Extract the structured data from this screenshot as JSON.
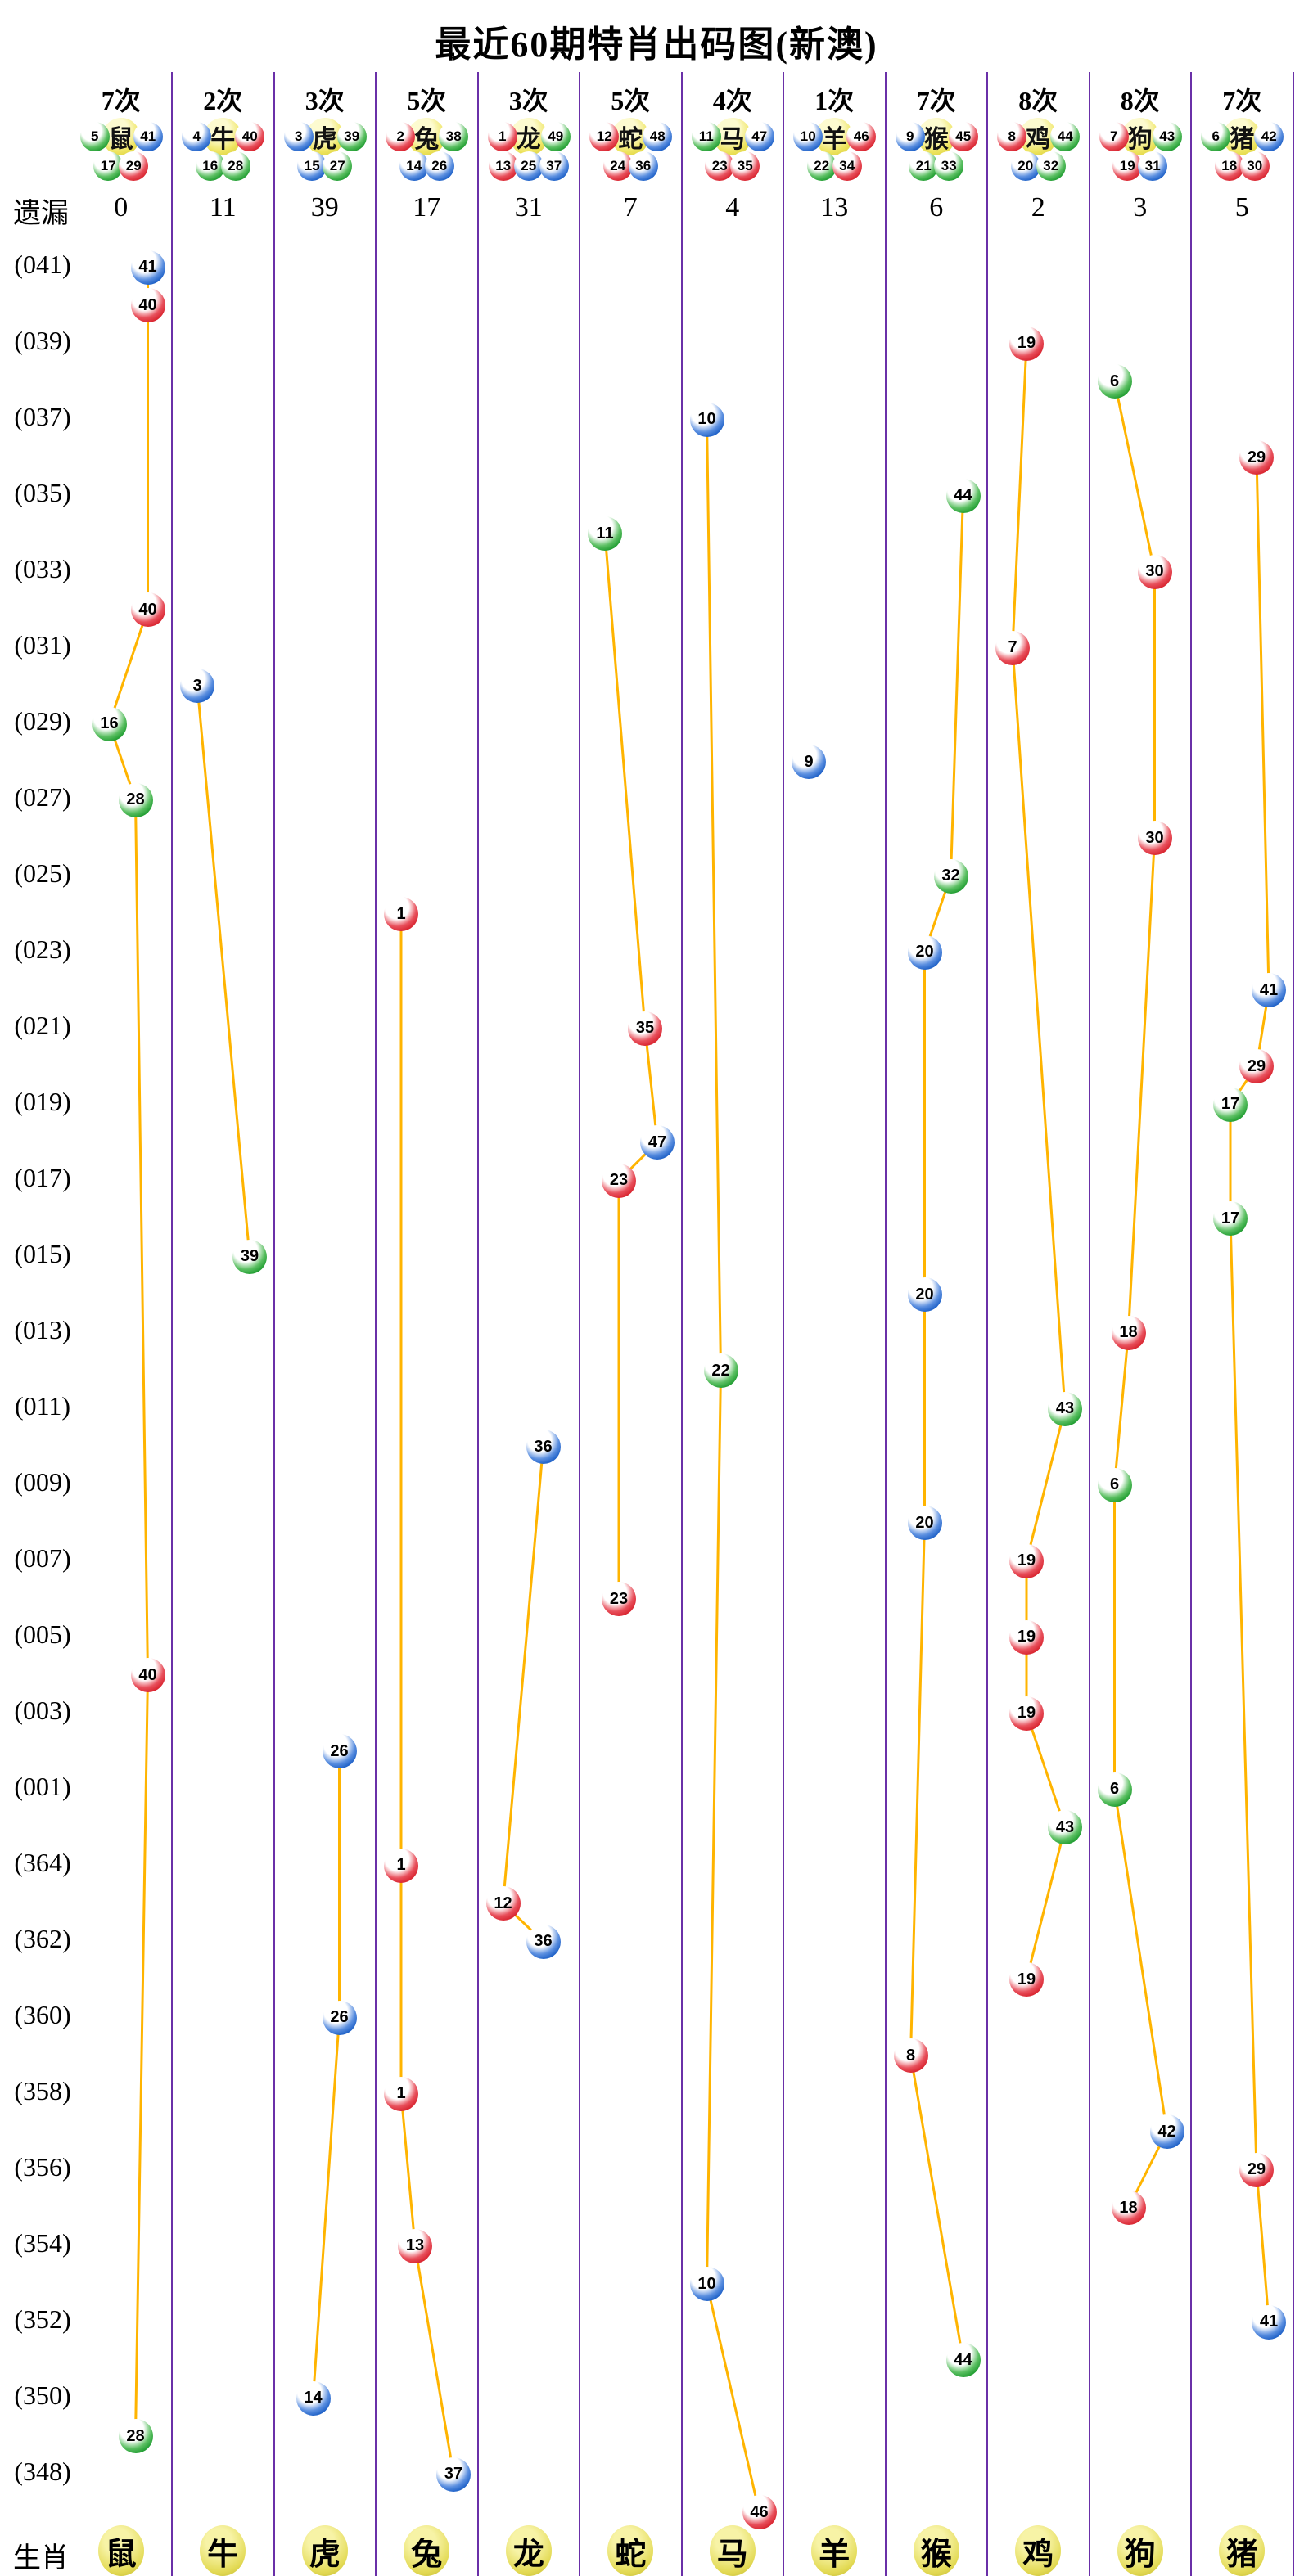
{
  "title": "最近60期特肖出码图(新澳)",
  "labels": {
    "miss": "遗漏",
    "zodiac": "生肖"
  },
  "chart_data": {
    "type": "scatter",
    "columns": [
      {
        "name": "鼠",
        "times": "7次",
        "miss": "0",
        "header_top": [
          {
            "n": "5",
            "c": "green"
          },
          {
            "n": "41",
            "c": "blue"
          }
        ],
        "header_bottom": [
          {
            "n": "17",
            "c": "green"
          },
          {
            "n": "29",
            "c": "red"
          }
        ]
      },
      {
        "name": "牛",
        "times": "2次",
        "miss": "11",
        "header_top": [
          {
            "n": "4",
            "c": "blue"
          },
          {
            "n": "40",
            "c": "red"
          }
        ],
        "header_bottom": [
          {
            "n": "16",
            "c": "green"
          },
          {
            "n": "28",
            "c": "green"
          }
        ]
      },
      {
        "name": "虎",
        "times": "3次",
        "miss": "39",
        "header_top": [
          {
            "n": "3",
            "c": "blue"
          },
          {
            "n": "39",
            "c": "green"
          }
        ],
        "header_bottom": [
          {
            "n": "15",
            "c": "blue"
          },
          {
            "n": "27",
            "c": "green"
          }
        ]
      },
      {
        "name": "兔",
        "times": "5次",
        "miss": "17",
        "header_top": [
          {
            "n": "2",
            "c": "red"
          },
          {
            "n": "38",
            "c": "green"
          }
        ],
        "header_bottom": [
          {
            "n": "14",
            "c": "blue"
          },
          {
            "n": "26",
            "c": "blue"
          }
        ]
      },
      {
        "name": "龙",
        "times": "3次",
        "miss": "31",
        "header_top": [
          {
            "n": "1",
            "c": "red"
          },
          {
            "n": "49",
            "c": "green"
          }
        ],
        "header_bottom": [
          {
            "n": "13",
            "c": "red"
          },
          {
            "n": "25",
            "c": "blue"
          },
          {
            "n": "37",
            "c": "blue"
          }
        ]
      },
      {
        "name": "蛇",
        "times": "5次",
        "miss": "7",
        "header_top": [
          {
            "n": "12",
            "c": "red"
          },
          {
            "n": "48",
            "c": "blue"
          }
        ],
        "header_bottom": [
          {
            "n": "24",
            "c": "red"
          },
          {
            "n": "36",
            "c": "blue"
          }
        ]
      },
      {
        "name": "马",
        "times": "4次",
        "miss": "4",
        "header_top": [
          {
            "n": "11",
            "c": "green"
          },
          {
            "n": "47",
            "c": "blue"
          }
        ],
        "header_bottom": [
          {
            "n": "23",
            "c": "red"
          },
          {
            "n": "35",
            "c": "red"
          }
        ]
      },
      {
        "name": "羊",
        "times": "1次",
        "miss": "13",
        "header_top": [
          {
            "n": "10",
            "c": "blue"
          },
          {
            "n": "46",
            "c": "red"
          }
        ],
        "header_bottom": [
          {
            "n": "22",
            "c": "green"
          },
          {
            "n": "34",
            "c": "red"
          }
        ]
      },
      {
        "name": "猴",
        "times": "7次",
        "miss": "6",
        "header_top": [
          {
            "n": "9",
            "c": "blue"
          },
          {
            "n": "45",
            "c": "red"
          }
        ],
        "header_bottom": [
          {
            "n": "21",
            "c": "green"
          },
          {
            "n": "33",
            "c": "green"
          }
        ]
      },
      {
        "name": "鸡",
        "times": "8次",
        "miss": "2",
        "header_top": [
          {
            "n": "8",
            "c": "red"
          },
          {
            "n": "44",
            "c": "green"
          }
        ],
        "header_bottom": [
          {
            "n": "20",
            "c": "blue"
          },
          {
            "n": "32",
            "c": "green"
          }
        ]
      },
      {
        "name": "狗",
        "times": "8次",
        "miss": "3",
        "header_top": [
          {
            "n": "7",
            "c": "red"
          },
          {
            "n": "43",
            "c": "green"
          }
        ],
        "header_bottom": [
          {
            "n": "19",
            "c": "red"
          },
          {
            "n": "31",
            "c": "blue"
          }
        ]
      },
      {
        "name": "猪",
        "times": "7次",
        "miss": "5",
        "header_top": [
          {
            "n": "6",
            "c": "green"
          },
          {
            "n": "42",
            "c": "blue"
          }
        ],
        "header_bottom": [
          {
            "n": "18",
            "c": "red"
          },
          {
            "n": "30",
            "c": "red"
          }
        ]
      }
    ],
    "row_labels": [
      "(041)",
      "(039)",
      "(037)",
      "(035)",
      "(033)",
      "(031)",
      "(029)",
      "(027)",
      "(025)",
      "(023)",
      "(021)",
      "(019)",
      "(017)",
      "(015)",
      "(013)",
      "(011)",
      "(009)",
      "(007)",
      "(005)",
      "(003)",
      "(001)",
      "(364)",
      "(362)",
      "(360)",
      "(358)",
      "(356)",
      "(354)",
      "(352)",
      "(350)",
      "(348)"
    ],
    "points": [
      {
        "row": 1,
        "col": 0,
        "num": "41",
        "color": "blue",
        "slot": 4
      },
      {
        "row": 2,
        "col": 0,
        "num": "40",
        "color": "red",
        "slot": 4
      },
      {
        "row": 3,
        "col": 9,
        "num": "19",
        "color": "red",
        "slot": 2
      },
      {
        "row": 4,
        "col": 10,
        "num": "6",
        "color": "green",
        "slot": 1
      },
      {
        "row": 5,
        "col": 6,
        "num": "10",
        "color": "blue",
        "slot": 1
      },
      {
        "row": 6,
        "col": 11,
        "num": "29",
        "color": "red",
        "slot": 3
      },
      {
        "row": 7,
        "col": 8,
        "num": "44",
        "color": "green",
        "slot": 4
      },
      {
        "row": 8,
        "col": 5,
        "num": "11",
        "color": "green",
        "slot": 1
      },
      {
        "row": 9,
        "col": 10,
        "num": "30",
        "color": "red",
        "slot": 3
      },
      {
        "row": 10,
        "col": 0,
        "num": "40",
        "color": "red",
        "slot": 4
      },
      {
        "row": 11,
        "col": 9,
        "num": "7",
        "color": "red",
        "slot": 1
      },
      {
        "row": 12,
        "col": 1,
        "num": "3",
        "color": "blue",
        "slot": 1
      },
      {
        "row": 13,
        "col": 0,
        "num": "16",
        "color": "green",
        "slot": 2
      },
      {
        "row": 14,
        "col": 7,
        "num": "9",
        "color": "blue",
        "slot": 1
      },
      {
        "row": 15,
        "col": 0,
        "num": "28",
        "color": "green",
        "slot": 3
      },
      {
        "row": 16,
        "col": 10,
        "num": "30",
        "color": "red",
        "slot": 3
      },
      {
        "row": 17,
        "col": 8,
        "num": "32",
        "color": "green",
        "slot": 3
      },
      {
        "row": 18,
        "col": 3,
        "num": "1",
        "color": "red",
        "slot": 1
      },
      {
        "row": 19,
        "col": 8,
        "num": "20",
        "color": "blue",
        "slot": 2
      },
      {
        "row": 20,
        "col": 11,
        "num": "41",
        "color": "blue",
        "slot": 4
      },
      {
        "row": 21,
        "col": 5,
        "num": "35",
        "color": "red",
        "slot": 3
      },
      {
        "row": 22,
        "col": 11,
        "num": "29",
        "color": "red",
        "slot": 3
      },
      {
        "row": 23,
        "col": 11,
        "num": "17",
        "color": "green",
        "slot": 2
      },
      {
        "row": 24,
        "col": 5,
        "num": "47",
        "color": "blue",
        "slot": 4
      },
      {
        "row": 25,
        "col": 5,
        "num": "23",
        "color": "red",
        "slot": 2
      },
      {
        "row": 26,
        "col": 11,
        "num": "17",
        "color": "green",
        "slot": 2
      },
      {
        "row": 27,
        "col": 1,
        "num": "39",
        "color": "green",
        "slot": 4
      },
      {
        "row": 28,
        "col": 8,
        "num": "20",
        "color": "blue",
        "slot": 2
      },
      {
        "row": 29,
        "col": 10,
        "num": "18",
        "color": "red",
        "slot": 2
      },
      {
        "row": 30,
        "col": 6,
        "num": "22",
        "color": "green",
        "slot": 2
      },
      {
        "row": 31,
        "col": 9,
        "num": "43",
        "color": "green",
        "slot": 4
      },
      {
        "row": 32,
        "col": 4,
        "num": "36",
        "color": "blue",
        "slot": 3
      },
      {
        "row": 33,
        "col": 10,
        "num": "6",
        "color": "green",
        "slot": 1
      },
      {
        "row": 34,
        "col": 8,
        "num": "20",
        "color": "blue",
        "slot": 2
      },
      {
        "row": 35,
        "col": 9,
        "num": "19",
        "color": "red",
        "slot": 2
      },
      {
        "row": 36,
        "col": 5,
        "num": "23",
        "color": "red",
        "slot": 2
      },
      {
        "row": 37,
        "col": 9,
        "num": "19",
        "color": "red",
        "slot": 2
      },
      {
        "row": 38,
        "col": 0,
        "num": "40",
        "color": "red",
        "slot": 4
      },
      {
        "row": 39,
        "col": 9,
        "num": "19",
        "color": "red",
        "slot": 2
      },
      {
        "row": 40,
        "col": 2,
        "num": "26",
        "color": "blue",
        "slot": 3
      },
      {
        "row": 41,
        "col": 10,
        "num": "6",
        "color": "green",
        "slot": 1
      },
      {
        "row": 42,
        "col": 9,
        "num": "43",
        "color": "green",
        "slot": 4
      },
      {
        "row": 43,
        "col": 3,
        "num": "1",
        "color": "red",
        "slot": 1
      },
      {
        "row": 44,
        "col": 4,
        "num": "12",
        "color": "red",
        "slot": 1
      },
      {
        "row": 45,
        "col": 4,
        "num": "36",
        "color": "blue",
        "slot": 3
      },
      {
        "row": 46,
        "col": 9,
        "num": "19",
        "color": "red",
        "slot": 2
      },
      {
        "row": 47,
        "col": 2,
        "num": "26",
        "color": "blue",
        "slot": 3
      },
      {
        "row": 48,
        "col": 8,
        "num": "8",
        "color": "red",
        "slot": 1
      },
      {
        "row": 49,
        "col": 3,
        "num": "1",
        "color": "red",
        "slot": 1
      },
      {
        "row": 50,
        "col": 10,
        "num": "42",
        "color": "blue",
        "slot": 4
      },
      {
        "row": 51,
        "col": 11,
        "num": "29",
        "color": "red",
        "slot": 3
      },
      {
        "row": 52,
        "col": 10,
        "num": "18",
        "color": "red",
        "slot": 2
      },
      {
        "row": 53,
        "col": 3,
        "num": "13",
        "color": "red",
        "slot": 2
      },
      {
        "row": 54,
        "col": 6,
        "num": "10",
        "color": "blue",
        "slot": 1
      },
      {
        "row": 55,
        "col": 11,
        "num": "41",
        "color": "blue",
        "slot": 4
      },
      {
        "row": 56,
        "col": 8,
        "num": "44",
        "color": "green",
        "slot": 4
      },
      {
        "row": 57,
        "col": 2,
        "num": "14",
        "color": "blue",
        "slot": 2
      },
      {
        "row": 58,
        "col": 0,
        "num": "28",
        "color": "green",
        "slot": 3
      },
      {
        "row": 59,
        "col": 3,
        "num": "37",
        "color": "blue",
        "slot": 4
      },
      {
        "row": 60,
        "col": 6,
        "num": "46",
        "color": "red",
        "slot": 4
      }
    ],
    "colors": {
      "red": "#d8232e",
      "blue": "#1c5fc6",
      "green": "#1f9c30",
      "line": "#ffb400",
      "separator": "#6a30a8",
      "zodiac_ball": "#eee45f"
    }
  }
}
